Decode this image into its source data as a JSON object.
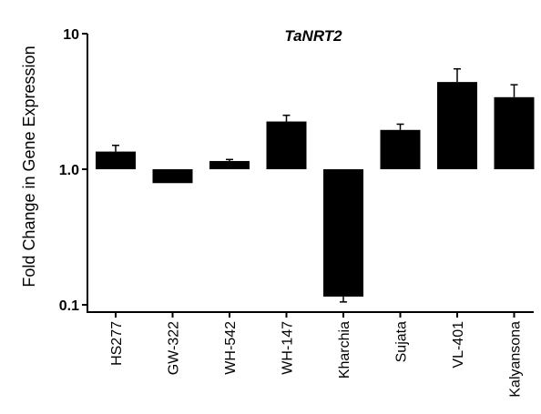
{
  "chart_data": {
    "type": "bar",
    "title": "TaNRT2",
    "xlabel": "",
    "ylabel": "Fold Change in Gene Expression",
    "yscale": "log",
    "ylim": [
      0.1,
      10
    ],
    "baseline": 1.0,
    "yticks": [
      {
        "value": 10,
        "label": "10"
      },
      {
        "value": 1,
        "label": "1.0"
      },
      {
        "value": 0.1,
        "label": "0.1"
      }
    ],
    "categories": [
      "HS277",
      "GW-322",
      "WH-542",
      "WH-147",
      "Kharchia",
      "Sujata",
      "VL-401",
      "Kalyansona"
    ],
    "values": [
      1.35,
      0.79,
      1.15,
      2.25,
      0.115,
      1.95,
      4.4,
      3.4
    ],
    "error_bars": [
      {
        "low": 1.35,
        "high": 1.5
      },
      {
        "low": 0.79,
        "high": 0.79
      },
      {
        "low": 1.15,
        "high": 1.18
      },
      {
        "low": 2.25,
        "high": 2.5
      },
      {
        "low": 0.105,
        "high": 0.115
      },
      {
        "low": 1.95,
        "high": 2.15
      },
      {
        "low": 4.4,
        "high": 5.5
      },
      {
        "low": 3.4,
        "high": 4.2
      }
    ],
    "bar_color": "#000000",
    "grid": false,
    "legend": "none"
  }
}
